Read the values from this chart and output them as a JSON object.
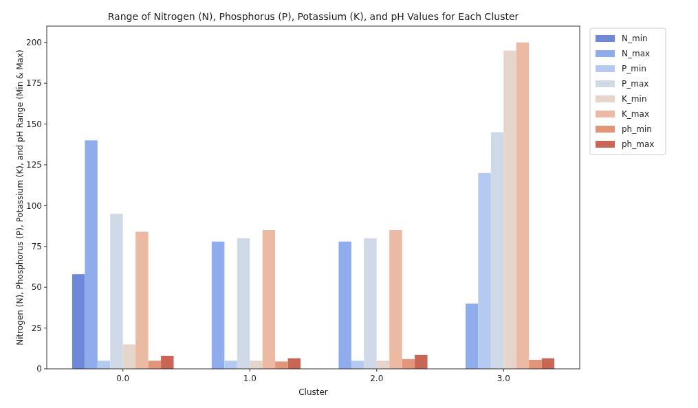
{
  "chart_data": {
    "type": "bar",
    "title": "Range of Nitrogen (N), Phosphorus (P), Potassium (K), and pH  Values for Each Cluster",
    "xlabel": "Cluster",
    "ylabel": "Nitrogen (N), Phosphorus (P), Potassium (K), and pH Range (Min & Max)",
    "categories": [
      "0.0",
      "1.0",
      "2.0",
      "3.0"
    ],
    "ylim": [
      0,
      210
    ],
    "yticks": [
      0,
      25,
      50,
      75,
      100,
      125,
      150,
      175,
      200
    ],
    "grid": false,
    "legend": "top right",
    "series": [
      {
        "name": "N_min",
        "color": "#6d88d8",
        "values": [
          58,
          0,
          0,
          0
        ]
      },
      {
        "name": "N_max",
        "color": "#8fadec",
        "values": [
          140,
          78,
          78,
          40
        ]
      },
      {
        "name": "P_min",
        "color": "#b5c9f1",
        "values": [
          5,
          5,
          5,
          120
        ]
      },
      {
        "name": "P_max",
        "color": "#d0d9e7",
        "values": [
          95,
          80,
          80,
          145
        ]
      },
      {
        "name": "K_min",
        "color": "#e5d5cb",
        "values": [
          15,
          5,
          5,
          195
        ]
      },
      {
        "name": "K_max",
        "color": "#ecbaa2",
        "values": [
          84,
          85,
          85,
          200
        ]
      },
      {
        "name": "ph_min",
        "color": "#e3957a",
        "values": [
          5,
          4.5,
          6,
          5.5
        ]
      },
      {
        "name": "ph_max",
        "color": "#c96658",
        "values": [
          8,
          6.5,
          8.5,
          6.5
        ]
      }
    ]
  }
}
